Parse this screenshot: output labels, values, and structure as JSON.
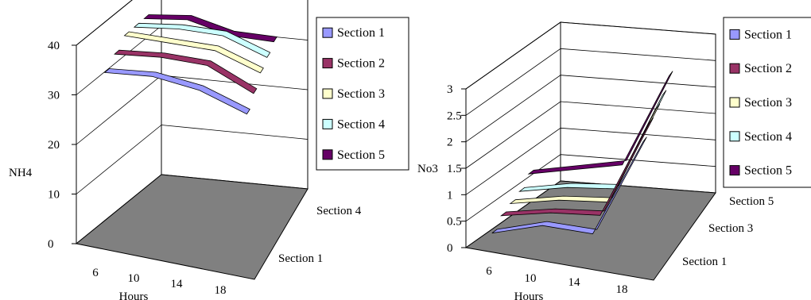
{
  "chart_data": [
    {
      "type": "line",
      "style": "3d-ribbon",
      "x_label": "Hours",
      "y_label": "NH4",
      "z_label": "",
      "x_ticks": [
        "6",
        "10",
        "14",
        "18"
      ],
      "y_ticks": [
        "0",
        "10",
        "20",
        "30",
        "40"
      ],
      "z_ticks": [
        "Section 1",
        "Section 4"
      ],
      "ylim": [
        0,
        40
      ],
      "x": [
        6,
        10,
        14,
        18
      ],
      "series": [
        {
          "name": "Section 1",
          "values": [
            33,
            34,
            33,
            30
          ],
          "color": "#9999ff"
        },
        {
          "name": "Section 2",
          "values": [
            35,
            36,
            36,
            32
          ],
          "color": "#993366"
        },
        {
          "name": "Section 3",
          "values": [
            37,
            37,
            37,
            34
          ],
          "color": "#ffffcc"
        },
        {
          "name": "Section 4",
          "values": [
            37,
            38,
            38,
            35
          ],
          "color": "#ccffff"
        },
        {
          "name": "Section 5",
          "values": [
            37,
            38,
            36,
            36
          ],
          "color": "#660066"
        }
      ],
      "legend_position": "right",
      "grid": true
    },
    {
      "type": "line",
      "style": "3d-ribbon",
      "x_label": "Hours",
      "y_label": "No3",
      "z_label": "",
      "x_ticks": [
        "6",
        "10",
        "14",
        "18"
      ],
      "y_ticks": [
        "0",
        "0.5",
        "1",
        "1.5",
        "2",
        "2.5",
        "3"
      ],
      "z_ticks": [
        "Section 1",
        "Section 3",
        "Section 5"
      ],
      "ylim": [
        0,
        3
      ],
      "x": [
        6,
        10,
        14,
        18
      ],
      "series": [
        {
          "name": "Section 1",
          "values": [
            0.2,
            0.5,
            0.5,
            2.4
          ],
          "color": "#9999ff"
        },
        {
          "name": "Section 2",
          "values": [
            0.4,
            0.6,
            0.7,
            2.6
          ],
          "color": "#993366"
        },
        {
          "name": "Section 3",
          "values": [
            0.5,
            0.7,
            0.8,
            2.7
          ],
          "color": "#ffffcc"
        },
        {
          "name": "Section 4",
          "values": [
            0.6,
            0.8,
            0.9,
            2.8
          ],
          "color": "#ccffff"
        },
        {
          "name": "Section 5",
          "values": [
            0.8,
            1.0,
            1.2,
            3.0
          ],
          "color": "#660066"
        }
      ],
      "legend_position": "right",
      "grid": true
    }
  ]
}
